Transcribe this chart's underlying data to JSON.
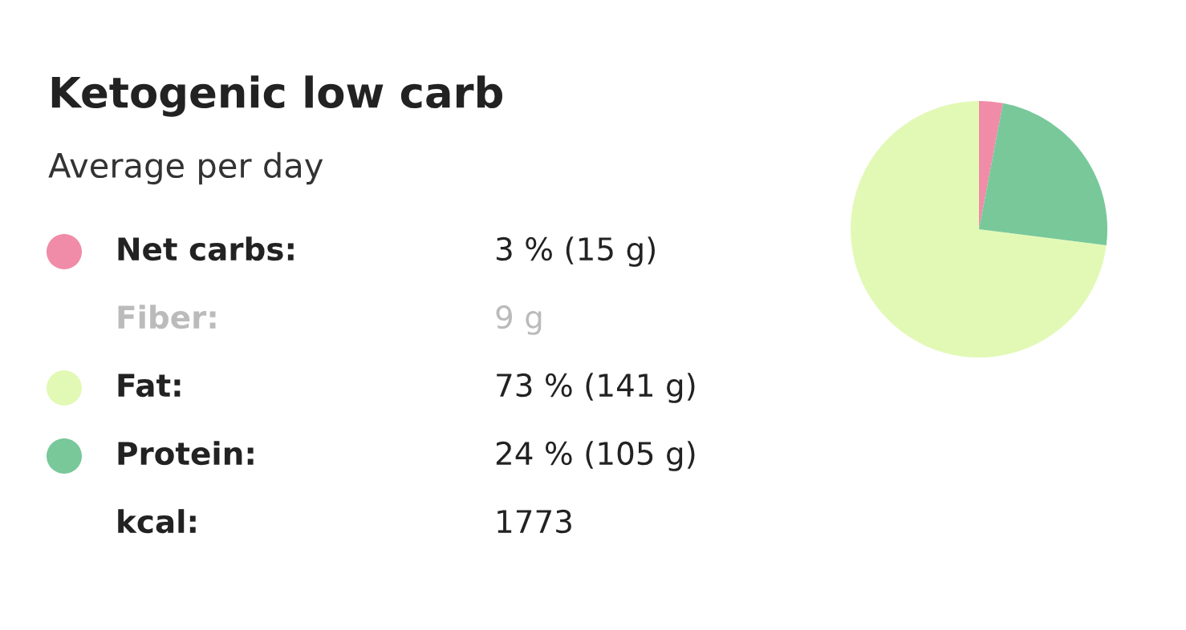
{
  "chart_data": {
    "type": "pie",
    "title": "Ketogenic low carb",
    "subtitle": "Average per day",
    "categories": [
      null,
      null,
      null
    ],
    "values": [
      3,
      73,
      24
    ],
    "colors": [
      "#f08ca8",
      "#e2f9b6",
      "#78c89a"
    ],
    "annotations": [
      "Net carbs:",
      "3 % (15 g)",
      "Fiber:",
      "9 g",
      "Fat:",
      "73 % (141 g)",
      "Protein:",
      "24 % (105 g)",
      "kcal:",
      "1773"
    ]
  }
}
